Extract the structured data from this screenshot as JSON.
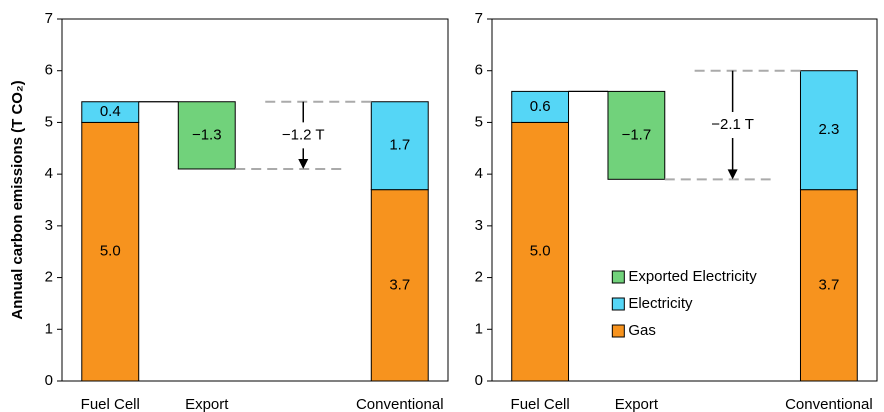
{
  "chart_data": [
    {
      "type": "bar",
      "ylabel": "Annual carbon emissions (T CO₂)",
      "categories": [
        "Fuel Cell",
        "Export",
        null,
        "Conventional"
      ],
      "series": [
        {
          "name": "Gas",
          "color": "#f7931e",
          "values": [
            5.0,
            null,
            null,
            3.7
          ],
          "value_labels": [
            "5.0",
            null,
            null,
            "3.7"
          ]
        },
        {
          "name": "Electricity",
          "color": "#55d6f6",
          "values": [
            0.4,
            null,
            null,
            1.7
          ],
          "value_labels": [
            "0.4",
            null,
            null,
            "1.7"
          ]
        },
        {
          "name": "Exported Electricity",
          "color": "#71d27b",
          "values": [
            null,
            -1.3,
            null,
            null
          ],
          "value_labels": [
            null,
            "−1.3",
            null,
            null
          ]
        }
      ],
      "annotation": "−1.2 T",
      "ylim": [
        0,
        7
      ],
      "yticks": [
        0,
        1,
        2,
        3,
        4,
        5,
        6,
        7
      ]
    },
    {
      "type": "bar",
      "categories": [
        "Fuel Cell",
        "Export",
        null,
        "Conventional"
      ],
      "series": [
        {
          "name": "Gas",
          "color": "#f7931e",
          "values": [
            5.0,
            null,
            null,
            3.7
          ],
          "value_labels": [
            "5.0",
            null,
            null,
            "3.7"
          ]
        },
        {
          "name": "Electricity",
          "color": "#55d6f6",
          "values": [
            0.6,
            null,
            null,
            2.3
          ],
          "value_labels": [
            "0.6",
            null,
            null,
            "2.3"
          ]
        },
        {
          "name": "Exported Electricity",
          "color": "#71d27b",
          "values": [
            null,
            -1.7,
            null,
            null
          ],
          "value_labels": [
            null,
            "−1.7",
            null,
            null
          ]
        }
      ],
      "annotation": "−2.1 T",
      "legend": "center",
      "ylim": [
        0,
        7
      ],
      "yticks": [
        0,
        1,
        2,
        3,
        4,
        5,
        6,
        7
      ]
    }
  ]
}
